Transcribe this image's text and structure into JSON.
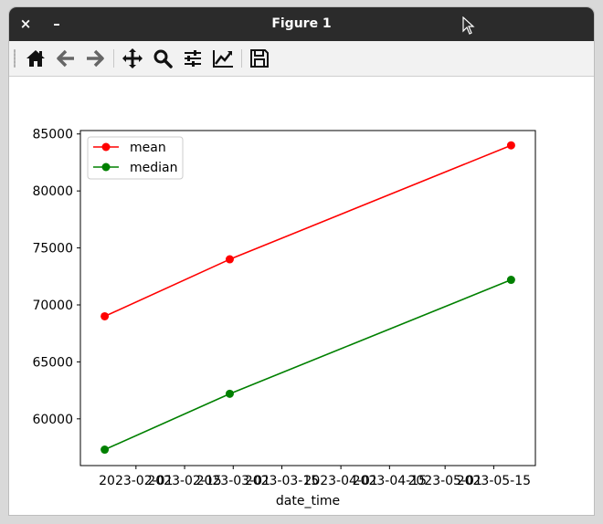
{
  "window": {
    "title": "Figure 1",
    "close_label": "×",
    "minimize_label": "–"
  },
  "toolbar": {
    "items": [
      {
        "name": "home-icon"
      },
      {
        "name": "back-arrow-icon"
      },
      {
        "name": "forward-arrow-icon"
      },
      {
        "name": "pan-icon"
      },
      {
        "name": "zoom-icon"
      },
      {
        "name": "configure-subplots-icon"
      },
      {
        "name": "edit-axes-icon"
      },
      {
        "name": "save-icon"
      }
    ]
  },
  "chart_data": {
    "type": "line",
    "xlabel": "date_time",
    "ylabel": "",
    "x": [
      "2023-01-23",
      "2023-02-28",
      "2023-05-20"
    ],
    "xticks": [
      "2023-02-01",
      "2023-02-15",
      "2023-03-01",
      "2023-03-15",
      "2023-04-01",
      "2023-04-15",
      "2023-05-01",
      "2023-05-15"
    ],
    "xlim": [
      "2023-01-16",
      "2023-05-27"
    ],
    "yticks": [
      60000,
      65000,
      70000,
      75000,
      80000,
      85000
    ],
    "ylim": [
      55900,
      85300
    ],
    "grid": false,
    "legend": "upper-left",
    "series": [
      {
        "name": "mean",
        "color": "#ff0000",
        "values": [
          69000,
          74000,
          84000
        ]
      },
      {
        "name": "median",
        "color": "#008000",
        "values": [
          57300,
          62200,
          72200
        ]
      }
    ]
  }
}
